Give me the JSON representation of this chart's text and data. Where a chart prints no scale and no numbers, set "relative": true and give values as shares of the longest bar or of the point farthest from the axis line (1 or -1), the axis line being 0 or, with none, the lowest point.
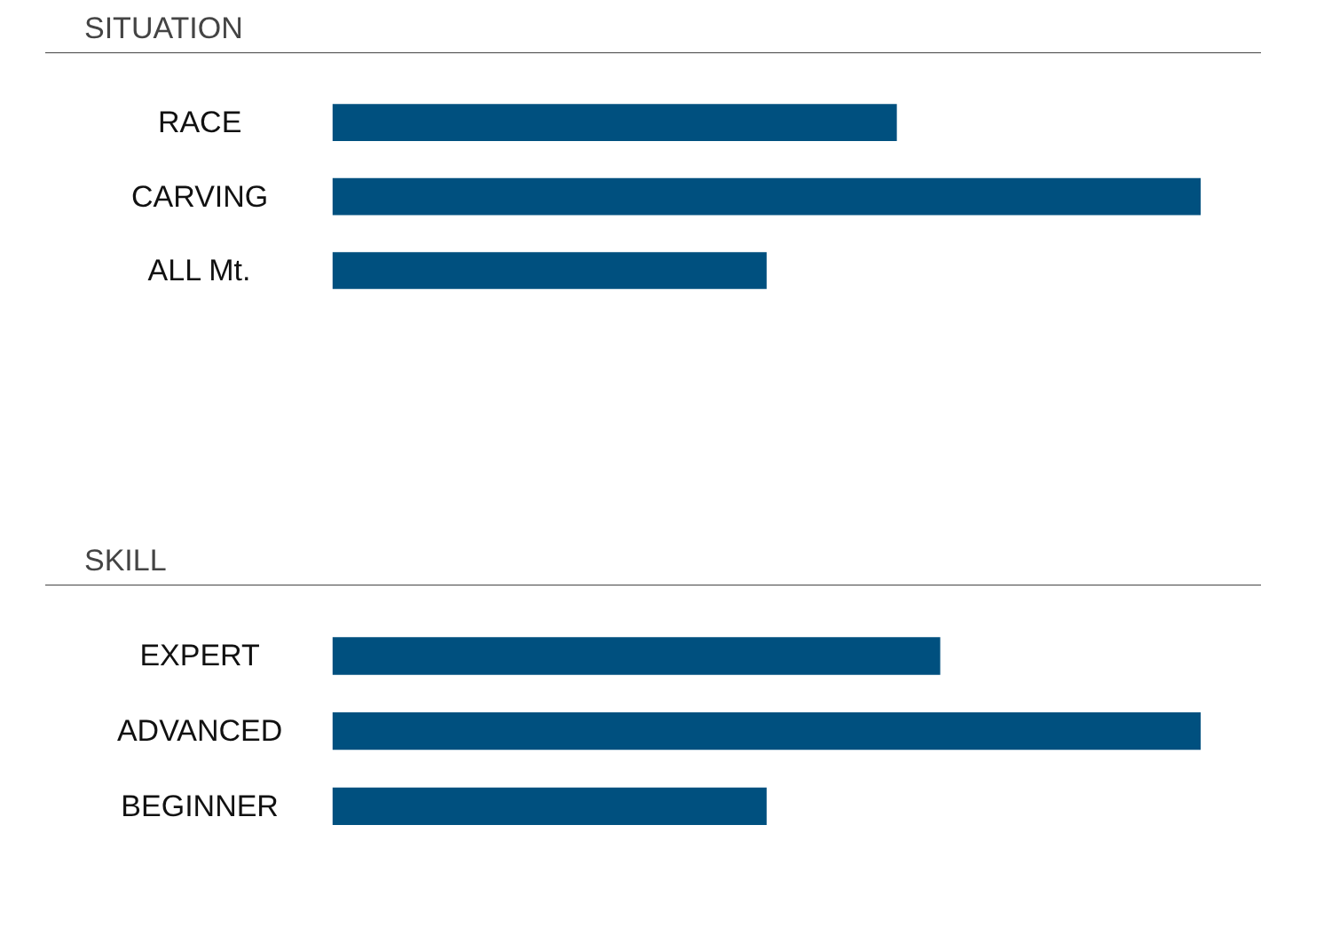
{
  "chart_data": [
    {
      "type": "bar",
      "orientation": "horizontal",
      "relative": true,
      "title": "SITUATION",
      "categories": [
        "RACE",
        "CARVING",
        "ALL Mt."
      ],
      "values": [
        0.65,
        1,
        0.5
      ],
      "color": "#00507f"
    },
    {
      "type": "bar",
      "orientation": "horizontal",
      "relative": true,
      "title": "SKILL",
      "categories": [
        "EXPERT",
        "ADVANCED",
        "BEGINNER"
      ],
      "values": [
        0.7,
        1,
        0.5
      ],
      "color": "#00507f"
    }
  ]
}
